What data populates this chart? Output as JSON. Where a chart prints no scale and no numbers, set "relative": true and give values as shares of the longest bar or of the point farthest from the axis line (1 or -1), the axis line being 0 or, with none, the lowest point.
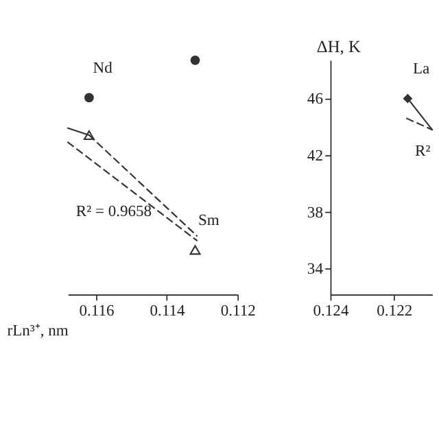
{
  "chart_data": [
    {
      "type": "scatter",
      "relative": true,
      "xlabel": "rLn³⁺, nm",
      "xlim": [
        0.1168,
        0.112
      ],
      "xticks": [
        0.116,
        0.114,
        0.112
      ],
      "tick_labels": "x",
      "grid": false,
      "series": [
        {
          "marker": "circle",
          "color": "#333333",
          "x": [
            0.1162,
            0.1132
          ],
          "values": [
            0.84,
            1.0
          ]
        },
        {
          "marker": "triangle",
          "color": "#333333",
          "x": [
            0.1162,
            0.1132
          ],
          "values": [
            0.68,
            0.19
          ]
        },
        {
          "type": "line",
          "marker": "none",
          "line_style": "solid",
          "color": "#333333",
          "x": [
            0.1168,
            0.1162
          ],
          "values": [
            0.71,
            0.68
          ]
        },
        {
          "type": "line",
          "marker": "none",
          "line_style": "dashed",
          "color": "#333333",
          "x": [
            0.1168,
            0.11315
          ],
          "values": [
            0.65,
            0.23
          ]
        },
        {
          "type": "line",
          "marker": "none",
          "line_style": "dashed",
          "color": "#333333",
          "x": [
            0.1162,
            0.11315
          ],
          "values": [
            0.68,
            0.25
          ]
        }
      ],
      "annotations": [
        {
          "text": "Nd",
          "x": 0.1162,
          "y": 0.84
        },
        {
          "text": "Sm",
          "x": 0.1132,
          "y": 0.19
        },
        {
          "text": "R² = 0.9658",
          "x": 0.1155,
          "y": 0.5
        }
      ]
    },
    {
      "type": "scatter",
      "ylabel": "ΔH, K",
      "xlim": [
        0.124,
        0.1208
      ],
      "xticks": [
        0.124,
        0.122
      ],
      "ylim": [
        32.2,
        48.7
      ],
      "yticks": [
        34,
        38,
        42,
        46
      ],
      "grid": false,
      "series": [
        {
          "type": "line",
          "marker": "none",
          "line_style": "solid",
          "color": "#333333",
          "x": [
            0.12157,
            0.1208
          ],
          "values": [
            46.0,
            43.8
          ]
        },
        {
          "type": "line",
          "marker": "none",
          "line_style": "dashed",
          "color": "#333333",
          "x": [
            0.1216,
            0.1208
          ],
          "values": [
            44.6,
            43.8
          ]
        },
        {
          "marker": "diamond",
          "color": "#333333",
          "x": [
            0.12157
          ],
          "values": [
            46.0
          ]
        }
      ],
      "annotations": [
        {
          "text": "La",
          "x": 0.12157,
          "y": 46.0
        },
        {
          "text": "R²",
          "x": 0.1211,
          "y": 44.66
        }
      ]
    }
  ]
}
